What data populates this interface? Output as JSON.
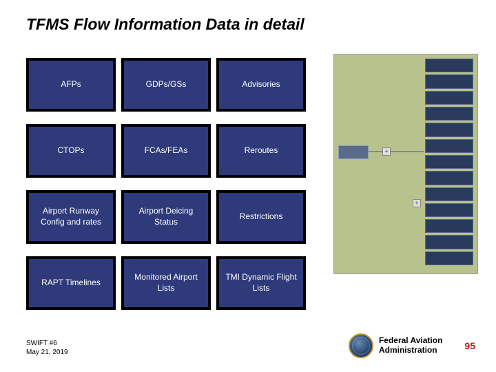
{
  "title": "TFMS Flow Information Data in detail",
  "grid": {
    "rows": 4,
    "cols": 3,
    "cell_bg": "#2e3a7a",
    "cell_border": "#000000",
    "text_color": "#ffffff",
    "font_size": 12,
    "items": [
      "AFPs",
      "GDPs/GSs",
      "Advisories",
      "CTOPs",
      "FCAs/FEAs",
      "Reroutes",
      "Airport Runway Config and rates",
      "Airport Deicing Status",
      "Restrictions",
      "RAPT Timelines",
      "Monitored Airport Lists",
      "TMI Dynamic Flight Lists"
    ]
  },
  "side_image": {
    "bg_color": "#b7c28d",
    "block_color": "#2a3a5a",
    "block_count": 13
  },
  "footer": {
    "doc_id": "SWIFT #6",
    "date": "May 21, 2019",
    "org_line1": "Federal Aviation",
    "org_line2": "Administration",
    "page_number": "95"
  },
  "colors": {
    "background": "#ffffff",
    "title_text": "#000000",
    "page_num_color": "#c01818"
  }
}
